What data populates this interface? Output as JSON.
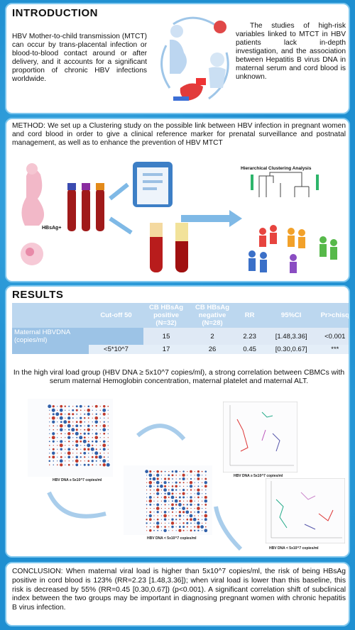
{
  "intro": {
    "title": "INTRODUCTION",
    "left_text": "HBV Mother-to-child transmission (MTCT) can occur by trans-placental infection or blood-to-blood contact around or after delivery, and it accounts for a significant proportion of chronic HBV infections worldwide.",
    "right_text": "The studies of high-risk variables linked to MTCT in HBV patients lack in-depth investigation, and the association between Hepatitis B virus DNA in maternal serum and cord blood is unknown."
  },
  "method": {
    "title": "METHOD:",
    "text": " We set up a Clustering study on the possible link between HBV infection in pregnant women and cord blood in order to give a clinical reference marker for prenatal surveillance and postnatal management, as well as to enhance the prevention of HBV MTCT",
    "hbsag_label": "HBsAg+",
    "hca_title": "Hierarchical Clustering Analysis"
  },
  "results": {
    "title": "RESULTS",
    "table": {
      "headers": [
        "",
        "Cut-off 50",
        "CB HBsAg positive (N=32)",
        "CB HBsAg negative (N=28)",
        "RR",
        "95%CI",
        "Pr>chisq"
      ],
      "row1": {
        "label": "Maternal HBVDNA (copies/ml)",
        "cutoff": "",
        "pos": "15",
        "neg": "2",
        "rr": "2.23",
        "ci": "[1.48,3.36]",
        "p": "<0.001"
      },
      "row2": {
        "label": "",
        "cutoff": "<5*10^7",
        "pos": "17",
        "neg": "26",
        "rr": "0.45",
        "ci": "[0.30,0.67]",
        "p": "***"
      }
    },
    "finding": "In the high viral load group (HBV DNA ≥ 5x10^7 copies/ml), a strong correlation between CBMCs with serum maternal Hemoglobin concentration, maternal platelet and maternal ALT.",
    "cap_high_1": "HBV DNA ≥ 5x10^7 copies/ml",
    "cap_low_1": "HBV DNA < 5x10^7 copies/ml",
    "cap_high_2": "HBV DNA ≥ 5x10^7 copies/ml",
    "cap_low_2": "HBV DNA < 5x10^7 copies/ml"
  },
  "conclusion": {
    "text": "CONCLUSION: When maternal viral load is higher than 5x10^7 copies/ml, the risk of being HBsAg positive in cord blood is 123% (RR=2.23 [1.48,3.36]); when viral load is lower than this baseline, this risk is decreased by 55% (RR=0.45 [0.30,0.67]) (p<0.001). A significant correlation shift of subclinical index between the two groups may be important in diagnosing pregnant women with chronic hepatitis B virus infection."
  }
}
